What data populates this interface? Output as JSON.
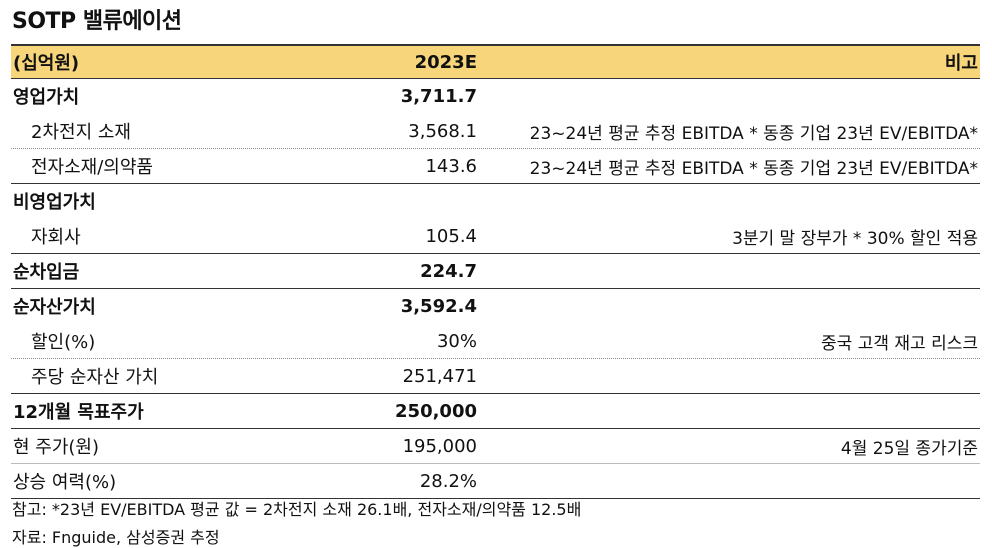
{
  "title": "SOTP 밸류에이션",
  "header": {
    "col1": "(십억원)",
    "col2": "2023E",
    "col3": "비고"
  },
  "rows": [
    {
      "label": "영업가치",
      "value": "3,711.7",
      "note": "",
      "bold": true
    },
    {
      "label": "2차전지 소재",
      "value": "3,568.1",
      "note": "23~24년 평균 추정 EBITDA * 동종 기업 23년 EV/EBITDA*",
      "bold": false
    },
    {
      "label": "전자소재/의약품",
      "value": "143.6",
      "note": "23~24년 평균 추정 EBITDA * 동종 기업 23년 EV/EBITDA*",
      "bold": false
    },
    {
      "label": "비영업가치",
      "value": "",
      "note": "",
      "bold": true
    },
    {
      "label": "자회사",
      "value": "105.4",
      "note": "3분기 말 장부가 * 30% 할인 적용",
      "bold": false
    },
    {
      "label": "순차입금",
      "value": "224.7",
      "note": "",
      "bold": true
    },
    {
      "label": "순자산가치",
      "value": "3,592.4",
      "note": "",
      "bold": true
    },
    {
      "label": "할인(%)",
      "value": "30%",
      "note": "중국 고객 재고 리스크",
      "bold": false
    },
    {
      "label": "주당 순자산 가치",
      "value": "251,471",
      "note": "",
      "bold": false
    },
    {
      "label": "12개월 목표주가",
      "value": "250,000",
      "note": "",
      "bold": true
    },
    {
      "label": "현 주가(원)",
      "value": "195,000",
      "note": "4월 25일 종가기준",
      "bold": false
    },
    {
      "label": "상승 여력(%)",
      "value": "28.2%",
      "note": "",
      "bold": false
    }
  ],
  "footnotes": {
    "note1": "참고: *23년 EV/EBITDA 평균 값 = 2차전지 소재 26.1배, 전자소재/의약품 12.5배",
    "note2": "자료: Fnguide, 삼성증권 추정"
  }
}
